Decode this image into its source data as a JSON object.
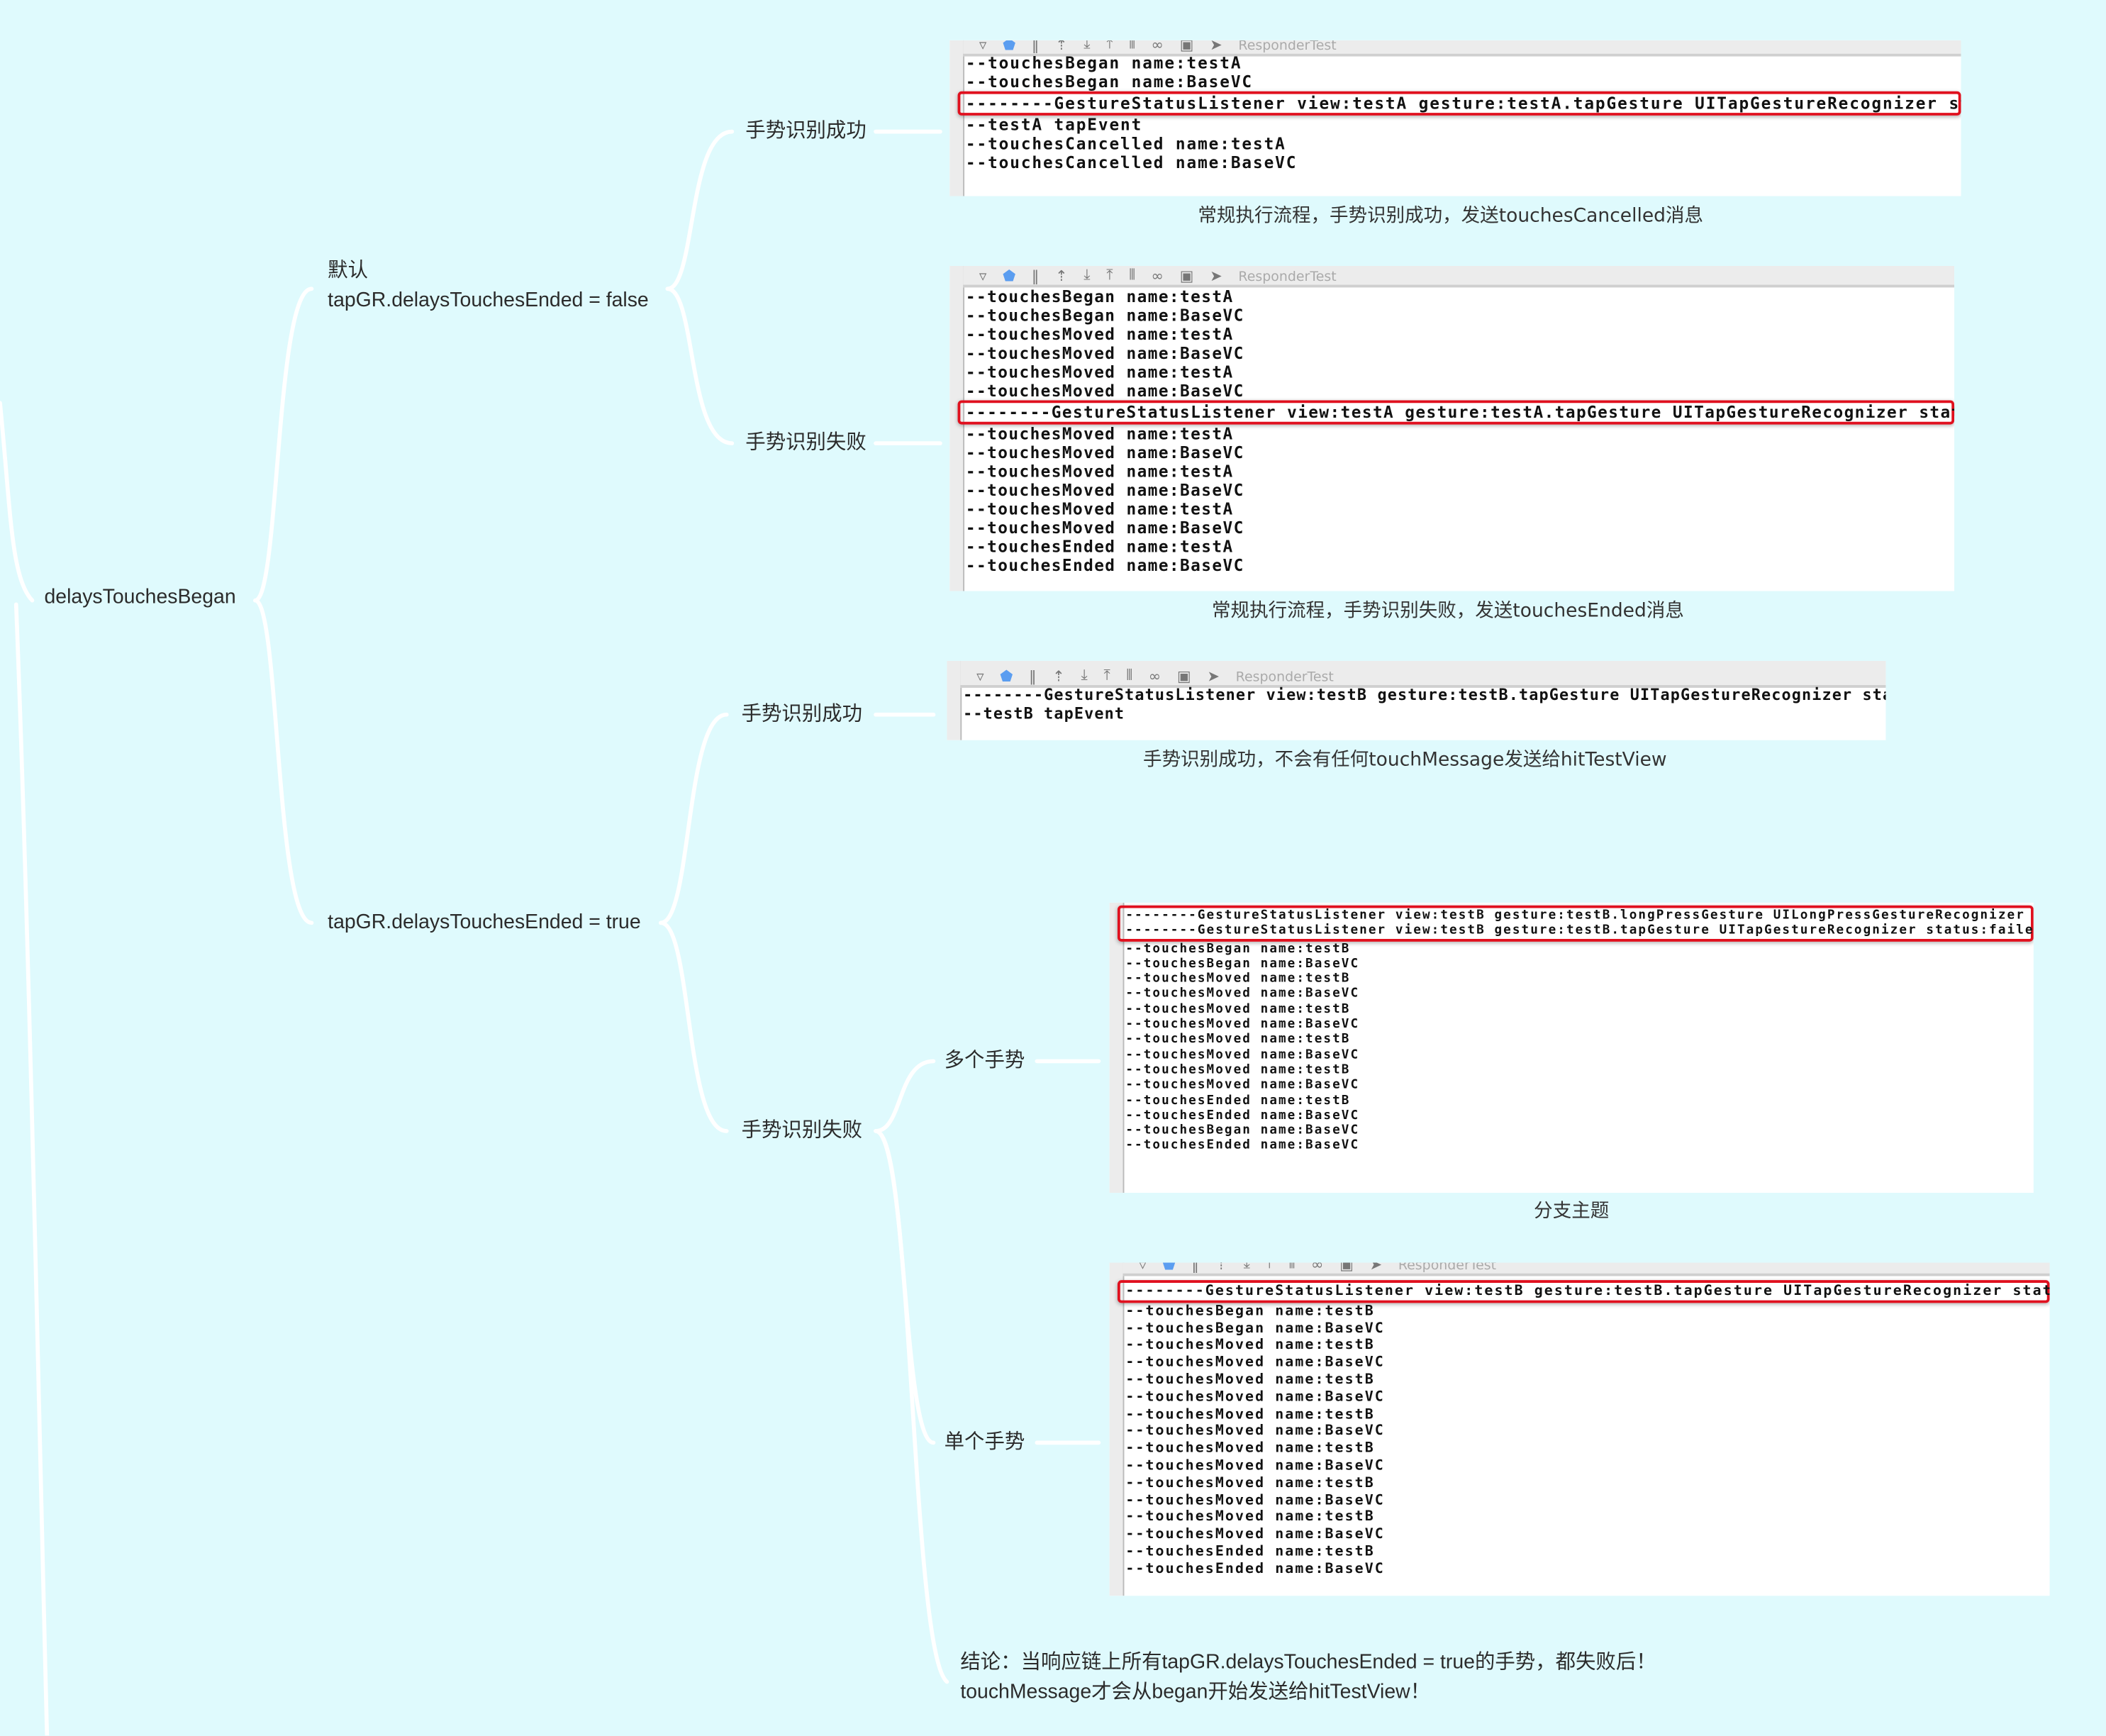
{
  "colors": {
    "background": "#dffafd",
    "connector": "#ffffff",
    "highlight": "#e0101e"
  },
  "root": {
    "label": "delaysTouchesBegan"
  },
  "branch_false": {
    "line1": "默认",
    "line2": "tapGR.delaysTouchesEnded = false"
  },
  "branch_true": {
    "label": "tapGR.delaysTouchesEnded = true"
  },
  "false_success": {
    "label": "手势识别成功"
  },
  "false_fail": {
    "label": "手势识别失败"
  },
  "true_success": {
    "label": "手势识别成功"
  },
  "true_fail": {
    "label": "手势识别失败"
  },
  "multi": {
    "label": "多个手势"
  },
  "single": {
    "label": "单个手势"
  },
  "conclusion": {
    "line1": "结论：当响应链上所有tapGR.delaysTouchesEnded = true的手势，都失败后！",
    "line2": "touchMessage才会从began开始发送给hitTestView！"
  },
  "toolbar": {
    "label": "ResponderTest"
  },
  "panels": [
    {
      "id": "p1",
      "caption": "常规执行流程，手势识别成功，发送touchesCancelled消息",
      "highlight": [
        2
      ],
      "lines": [
        "--touchesBegan name:testA",
        "--touchesBegan name:BaseVC",
        "--------GestureStatusListener view:testA gesture:testA.tapGesture UITapGestureRecognizer status:ended",
        "--testA tapEvent",
        "--touchesCancelled name:testA",
        "--touchesCancelled name:BaseVC"
      ]
    },
    {
      "id": "p2",
      "caption": "常规执行流程，手势识别失败，发送touchesEnded消息",
      "highlight": [
        6
      ],
      "lines": [
        "--touchesBegan name:testA",
        "--touchesBegan name:BaseVC",
        "--touchesMoved name:testA",
        "--touchesMoved name:BaseVC",
        "--touchesMoved name:testA",
        "--touchesMoved name:BaseVC",
        "--------GestureStatusListener view:testA gesture:testA.tapGesture UITapGestureRecognizer status:failed",
        "--touchesMoved name:testA",
        "--touchesMoved name:BaseVC",
        "--touchesMoved name:testA",
        "--touchesMoved name:BaseVC",
        "--touchesMoved name:testA",
        "--touchesMoved name:BaseVC",
        "--touchesEnded name:testA",
        "--touchesEnded name:BaseVC"
      ]
    },
    {
      "id": "p3",
      "caption": "手势识别成功，不会有任何touchMessage发送给hitTestView",
      "highlight": [],
      "lines": [
        "--------GestureStatusListener view:testB gesture:testB.tapGesture UITapGestureRecognizer status:ended",
        "--testB tapEvent"
      ]
    },
    {
      "id": "p4",
      "caption": "分支主题",
      "highlight": [
        0,
        1
      ],
      "lines": [
        "--------GestureStatusListener view:testB gesture:testB.longPressGesture UILongPressGestureRecognizer status:failed",
        "--------GestureStatusListener view:testB gesture:testB.tapGesture UITapGestureRecognizer status:failed",
        "--touchesBegan name:testB",
        "--touchesBegan name:BaseVC",
        "--touchesMoved name:testB",
        "--touchesMoved name:BaseVC",
        "--touchesMoved name:testB",
        "--touchesMoved name:BaseVC",
        "--touchesMoved name:testB",
        "--touchesMoved name:BaseVC",
        "--touchesMoved name:testB",
        "--touchesMoved name:BaseVC",
        "--touchesEnded name:testB",
        "--touchesEnded name:BaseVC",
        "--touchesBegan name:BaseVC",
        "--touchesEnded name:BaseVC"
      ]
    },
    {
      "id": "p5",
      "caption": "",
      "highlight": [
        0
      ],
      "lines": [
        "--------GestureStatusListener view:testB gesture:testB.tapGesture UITapGestureRecognizer status:failed",
        "--touchesBegan name:testB",
        "--touchesBegan name:BaseVC",
        "--touchesMoved name:testB",
        "--touchesMoved name:BaseVC",
        "--touchesMoved name:testB",
        "--touchesMoved name:BaseVC",
        "--touchesMoved name:testB",
        "--touchesMoved name:BaseVC",
        "--touchesMoved name:testB",
        "--touchesMoved name:BaseVC",
        "--touchesMoved name:testB",
        "--touchesMoved name:BaseVC",
        "--touchesMoved name:testB",
        "--touchesMoved name:BaseVC",
        "--touchesEnded name:testB",
        "--touchesEnded name:BaseVC"
      ]
    }
  ]
}
